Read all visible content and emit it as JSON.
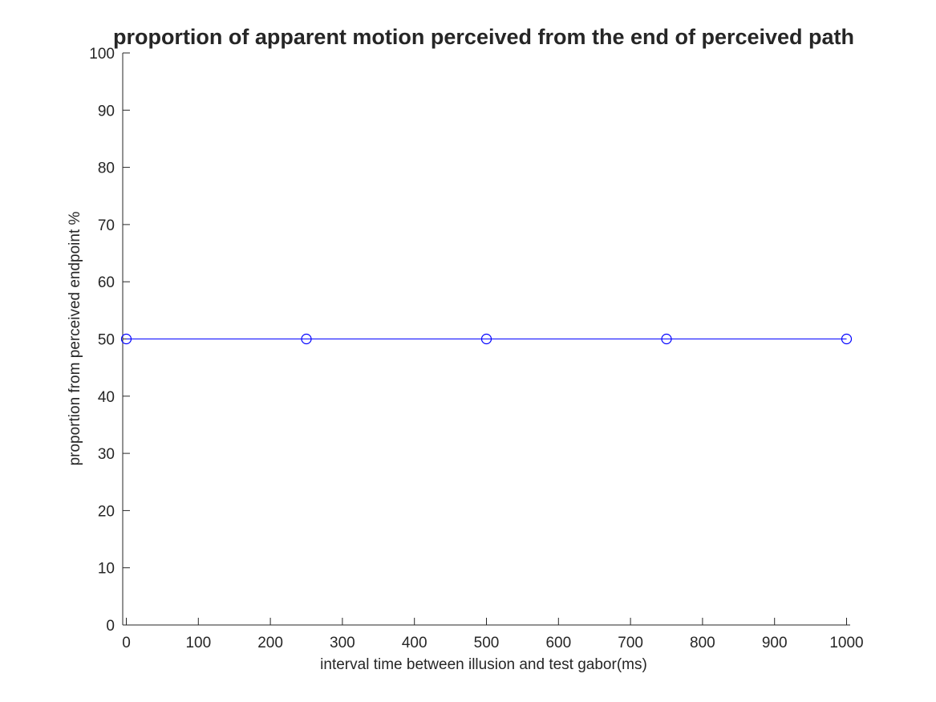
{
  "chart_data": {
    "type": "line",
    "title": "proportion of apparent motion perceived from the end of perceived path",
    "xlabel": "interval time between illusion and test gabor(ms)",
    "ylabel": "proportion from perceived endpoint %",
    "xlim": [
      -5,
      1005
    ],
    "ylim": [
      0,
      100
    ],
    "x_ticks": [
      0,
      100,
      200,
      300,
      400,
      500,
      600,
      700,
      800,
      900,
      1000
    ],
    "y_ticks": [
      0,
      10,
      20,
      30,
      40,
      50,
      60,
      70,
      80,
      90,
      100
    ],
    "grid": false,
    "series": [
      {
        "x": [
          0,
          250,
          500,
          750,
          1000
        ],
        "values": [
          50,
          50,
          50,
          50,
          50
        ],
        "color": "#0000ff",
        "marker": "circle"
      }
    ]
  }
}
